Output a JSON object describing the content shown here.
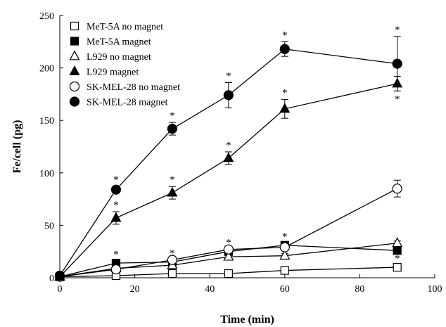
{
  "chart_data": {
    "type": "line",
    "xlabel": "Time (min)",
    "ylabel": "Fe/cell (pg)",
    "xlim": [
      0,
      100
    ],
    "ylim": [
      0,
      250
    ],
    "xticks": [
      "0",
      "20",
      "40",
      "60",
      "80",
      "100"
    ],
    "yticks": [
      "0",
      "50",
      "100",
      "150",
      "200",
      "250"
    ],
    "grid": false,
    "legend_position": "top-left",
    "significance_marker": "*",
    "series": [
      {
        "name": "MeT-5A no magnet",
        "marker": "square",
        "filled": false,
        "x": [
          0,
          15,
          30,
          45,
          60,
          90
        ],
        "y": [
          1,
          2,
          4,
          4,
          7,
          10
        ],
        "err": [
          0,
          0,
          0,
          0,
          0,
          2
        ],
        "sig": [
          false,
          false,
          false,
          false,
          false,
          true
        ]
      },
      {
        "name": "MeT-5A magnet",
        "marker": "square",
        "filled": true,
        "x": [
          0,
          15,
          30,
          45,
          60,
          90
        ],
        "y": [
          1,
          14,
          15,
          25,
          31,
          26
        ],
        "err": [
          0,
          2,
          2,
          2,
          2,
          3
        ],
        "sig": [
          false,
          true,
          true,
          true,
          true,
          false
        ]
      },
      {
        "name": "L929 no magnet",
        "marker": "triangle",
        "filled": false,
        "x": [
          0,
          15,
          30,
          45,
          60,
          90
        ],
        "y": [
          1,
          9,
          12,
          20,
          21,
          33
        ],
        "err": [
          0,
          1,
          1,
          2,
          2,
          2
        ],
        "sig": [
          false,
          false,
          false,
          false,
          false,
          false
        ]
      },
      {
        "name": "L929 magnet",
        "marker": "triangle",
        "filled": true,
        "x": [
          0,
          15,
          30,
          45,
          60,
          90
        ],
        "y": [
          1,
          57,
          81,
          114,
          161,
          185
        ],
        "err": [
          0,
          6,
          6,
          6,
          9,
          7
        ],
        "sig": [
          false,
          true,
          true,
          true,
          true,
          true
        ],
        "sig_below": [
          false,
          false,
          false,
          false,
          false,
          true
        ]
      },
      {
        "name": "SK-MEL-28 no magnet",
        "marker": "circle",
        "filled": false,
        "x": [
          0,
          15,
          30,
          45,
          60,
          90
        ],
        "y": [
          1,
          8,
          17,
          27,
          29,
          85
        ],
        "err": [
          0,
          2,
          2,
          3,
          3,
          8
        ],
        "sig": [
          false,
          false,
          false,
          false,
          false,
          false
        ]
      },
      {
        "name": "SK-MEL-28 magnet",
        "marker": "circle",
        "filled": true,
        "x": [
          0,
          15,
          30,
          45,
          60,
          90
        ],
        "y": [
          2,
          84,
          142,
          174,
          218,
          204
        ],
        "err": [
          0,
          3,
          6,
          12,
          7,
          26
        ],
        "sig": [
          false,
          true,
          true,
          true,
          true,
          true
        ]
      }
    ]
  }
}
